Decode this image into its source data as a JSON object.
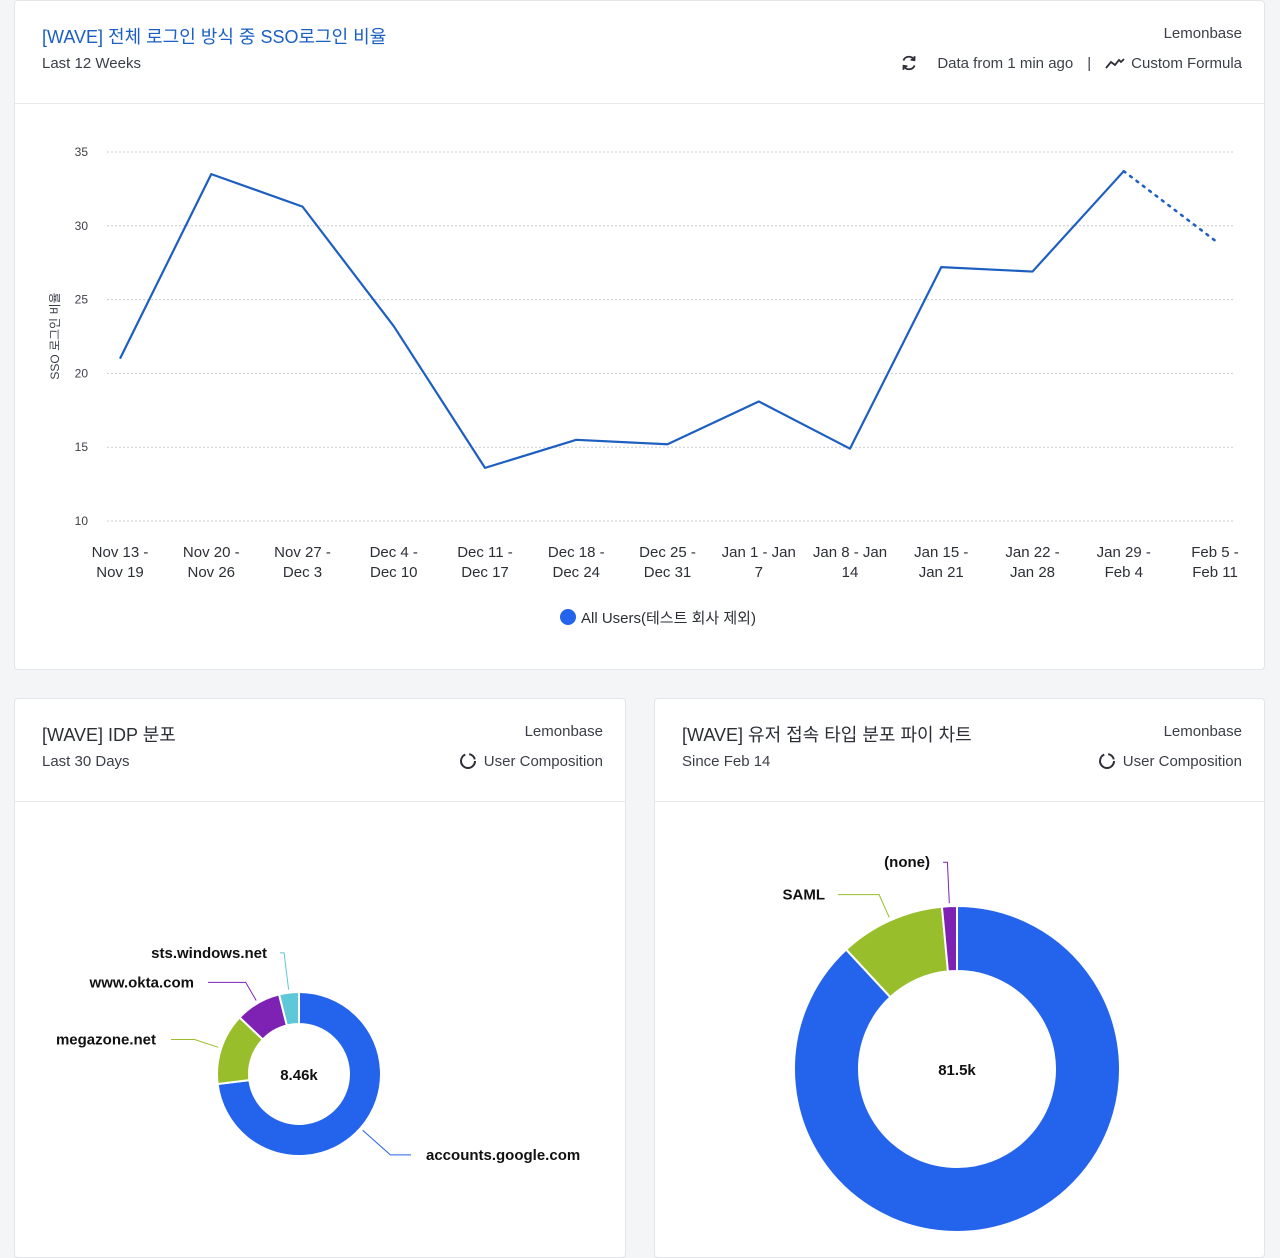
{
  "top_card": {
    "title": "[WAVE] 전체 로그인 방식 중 SSO로그인 비율",
    "subtitle": "Last 12 Weeks",
    "owner": "Lemonbase",
    "freshness": "Data from 1 min ago",
    "separator": "|",
    "formula_label": "Custom Formula",
    "icons": {
      "refresh": "refresh-icon",
      "formula": "trend-icon"
    },
    "colors": {
      "title": "#1a5fc4",
      "line": "#1d5fc1",
      "legend_dot": "#2463eb"
    }
  },
  "idp_card": {
    "title": "[WAVE] IDP 분포",
    "subtitle": "Last 30 Days",
    "owner": "Lemonbase",
    "chart_type_label": "User Composition"
  },
  "user_type_card": {
    "title": "[WAVE] 유저 접속 타입 분포 파이 차트",
    "subtitle": "Since Feb 14",
    "owner": "Lemonbase",
    "chart_type_label": "User Composition"
  },
  "chart_data": [
    {
      "type": "line",
      "title": "[WAVE] 전체 로그인 방식 중 SSO로그인 비율",
      "ylabel": "SSO 로그인 비율",
      "xlabel": "",
      "ylim": [
        10,
        35
      ],
      "yticks": [
        10,
        15,
        20,
        25,
        30,
        35
      ],
      "categories": [
        [
          "Nov 13 -",
          "Nov 19"
        ],
        [
          "Nov 20 -",
          "Nov 26"
        ],
        [
          "Nov 27 -",
          "Dec 3"
        ],
        [
          "Dec 4 -",
          "Dec 10"
        ],
        [
          "Dec 11 -",
          "Dec 17"
        ],
        [
          "Dec 18 -",
          "Dec 24"
        ],
        [
          "Dec 25 -",
          "Dec 31"
        ],
        [
          "Jan 1 - Jan",
          "7"
        ],
        [
          "Jan 8 - Jan",
          "14"
        ],
        [
          "Jan 15 -",
          "Jan 21"
        ],
        [
          "Jan 22 -",
          "Jan 28"
        ],
        [
          "Jan 29 -",
          "Feb 4"
        ],
        [
          "Feb 5 -",
          "Feb 11"
        ]
      ],
      "series": [
        {
          "name": "All Users(테스트 회사 제외)",
          "values": [
            21.0,
            33.5,
            31.3,
            23.2,
            13.6,
            15.5,
            15.2,
            18.1,
            14.9,
            27.2,
            26.9,
            33.7,
            29.0
          ],
          "incomplete_last_point": true
        }
      ],
      "grid": true,
      "legend": "bottom-center"
    },
    {
      "type": "pie",
      "donut": true,
      "title": "[WAVE] IDP 분포",
      "center_label": "8.46k",
      "slices": [
        {
          "label": "accounts.google.com",
          "value": 6180,
          "color": "#2463eb"
        },
        {
          "label": "megazone.net",
          "value": 1190,
          "color": "#98bf2b"
        },
        {
          "label": "www.okta.com",
          "value": 760,
          "color": "#7e22b4"
        },
        {
          "label": "sts.windows.net",
          "value": 330,
          "color": "#5fc8d8"
        }
      ]
    },
    {
      "type": "pie",
      "donut": true,
      "title": "[WAVE] 유저 접속 타입 분포 파이 차트",
      "center_label": "81.5k",
      "slices": [
        {
          "label": "",
          "value": 71800,
          "color": "#2463eb"
        },
        {
          "label": "SAML",
          "value": 8500,
          "color": "#98bf2b"
        },
        {
          "label": "(none)",
          "value": 1200,
          "color": "#7e22b4"
        }
      ]
    }
  ]
}
